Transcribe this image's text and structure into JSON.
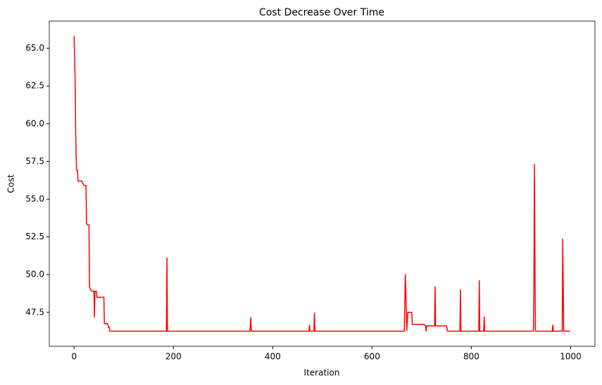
{
  "chart_data": {
    "type": "line",
    "title": "Cost Decrease Over Time",
    "xlabel": "Iteration",
    "ylabel": "Cost",
    "color": "#ff0000",
    "x": [
      0,
      2,
      3,
      4,
      5,
      7,
      8,
      15,
      20,
      24,
      25,
      27,
      30,
      31,
      33,
      37,
      40,
      41,
      42,
      45,
      46,
      60,
      61,
      68,
      69,
      71,
      72,
      186,
      187,
      188,
      354,
      356,
      357,
      473,
      474,
      475,
      483,
      484,
      485,
      665,
      667,
      668,
      670,
      672,
      680,
      681,
      705,
      708,
      709,
      710,
      726,
      727,
      728,
      750,
      752,
      777,
      778,
      779,
      815,
      816,
      817,
      825,
      826,
      827,
      925,
      926,
      927,
      929,
      963,
      964,
      965,
      983,
      984,
      986,
      999
    ],
    "values": [
      65.8,
      63.0,
      60.0,
      58.0,
      56.9,
      56.9,
      56.2,
      56.2,
      55.9,
      55.9,
      53.4,
      53.3,
      53.3,
      49.2,
      49.0,
      48.9,
      48.9,
      47.2,
      48.9,
      48.9,
      48.5,
      48.5,
      46.75,
      46.75,
      46.5,
      46.5,
      46.25,
      46.25,
      51.1,
      46.25,
      46.25,
      47.15,
      46.25,
      46.25,
      46.65,
      46.25,
      46.25,
      47.45,
      46.25,
      46.25,
      50.0,
      49.0,
      46.3,
      47.5,
      47.5,
      46.7,
      46.7,
      46.6,
      46.25,
      46.6,
      46.6,
      49.2,
      46.6,
      46.6,
      46.25,
      46.25,
      49.0,
      46.25,
      46.25,
      49.6,
      46.25,
      46.25,
      47.2,
      46.25,
      46.25,
      49.0,
      57.3,
      46.25,
      46.25,
      46.65,
      46.25,
      46.25,
      52.35,
      46.25,
      46.25
    ],
    "xlim": [
      -49.95,
      1048.95
    ],
    "ylim": [
      45.25,
      66.8
    ],
    "xticks": [
      0,
      200,
      400,
      600,
      800,
      1000
    ],
    "yticks": [
      47.5,
      {
        "value": 50,
        "label": "50.0"
      },
      52.5,
      {
        "value": 55,
        "label": "55.0"
      },
      57.5,
      {
        "value": 60,
        "label": "60.0"
      },
      62.5,
      {
        "value": 65,
        "label": "65.0"
      }
    ]
  }
}
